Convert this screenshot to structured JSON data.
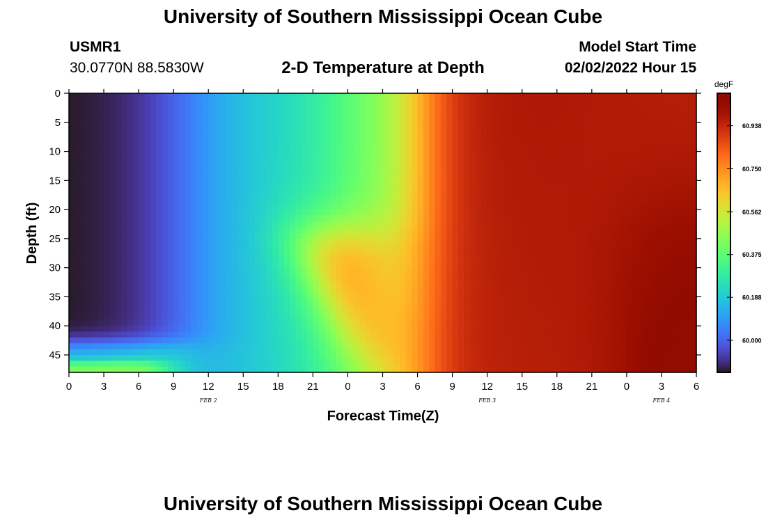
{
  "header": {
    "title": "University of Southern Mississippi Ocean Cube",
    "station_id": "USMR1",
    "coordinates": "30.0770N  88.5830W",
    "subtitle": "2-D Temperature at Depth",
    "model_start_label": "Model Start Time",
    "model_start_value": "02/02/2022 Hour 15"
  },
  "footer": {
    "title": "University of Southern Mississippi Ocean Cube"
  },
  "chart_data": {
    "type": "heatmap",
    "title": "2-D Temperature at Depth",
    "xlabel": "Forecast Time(Z)",
    "ylabel": "Depth (ft)",
    "xlim": [
      0,
      54
    ],
    "ylim": [
      48,
      0
    ],
    "y_inverted": true,
    "x_tick_values": [
      0,
      3,
      6,
      9,
      12,
      15,
      18,
      21,
      24,
      27,
      30,
      33,
      36,
      39,
      42,
      45,
      48,
      51,
      54
    ],
    "x_tick_labels": [
      "0",
      "3",
      "6",
      "9",
      "12",
      "15",
      "18",
      "21",
      "0",
      "3",
      "6",
      "9",
      "12",
      "15",
      "18",
      "21",
      "0",
      "3",
      "6"
    ],
    "date_labels": [
      {
        "label": "FEB 2",
        "x": 12
      },
      {
        "label": "FEB 3",
        "x": 36
      },
      {
        "label": "FEB 4",
        "x": 51
      }
    ],
    "y_tick_values": [
      0,
      5,
      10,
      15,
      20,
      25,
      30,
      35,
      40,
      45
    ],
    "colorbar": {
      "unit": "degF",
      "min": 59.86,
      "max": 61.08,
      "tick_values": [
        60.0,
        60.188,
        60.375,
        60.562,
        60.75,
        60.938
      ],
      "tick_labels": [
        "60.000",
        "60.188",
        "60.375",
        "60.562",
        "60.750",
        "60.938"
      ],
      "colormap": "turbo"
    },
    "values_note": "degF",
    "grid": false
  }
}
